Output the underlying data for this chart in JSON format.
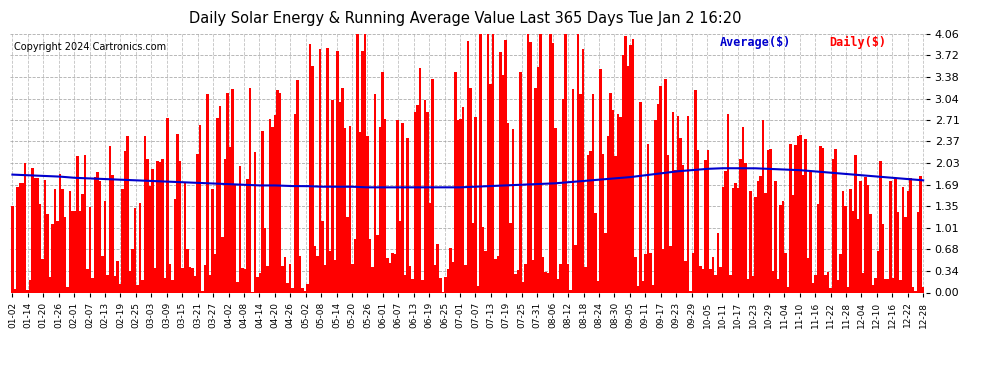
{
  "title": "Daily Solar Energy & Running Average Value Last 365 Days Tue Jan 2 16:20",
  "copyright": "Copyright 2024 Cartronics.com",
  "legend_avg": "Average($)",
  "legend_daily": "Daily($)",
  "ylim": [
    0.0,
    4.06
  ],
  "yticks": [
    0.0,
    0.34,
    0.68,
    1.01,
    1.35,
    1.69,
    2.03,
    2.37,
    2.71,
    3.04,
    3.38,
    3.72,
    4.06
  ],
  "bar_color": "#ff0000",
  "avg_line_color": "#0000cd",
  "bg_color": "#ffffff",
  "grid_color": "#999999",
  "title_color": "#000000",
  "copyright_color": "#000000",
  "x_labels": [
    "01-02",
    "01-14",
    "01-20",
    "01-26",
    "02-01",
    "02-07",
    "02-13",
    "02-19",
    "02-25",
    "03-03",
    "03-09",
    "03-15",
    "03-21",
    "03-27",
    "04-02",
    "04-08",
    "04-14",
    "04-20",
    "04-26",
    "05-02",
    "05-08",
    "05-14",
    "05-20",
    "05-26",
    "06-01",
    "06-07",
    "06-13",
    "06-19",
    "06-25",
    "07-01",
    "07-07",
    "07-13",
    "07-19",
    "07-25",
    "07-31",
    "08-06",
    "08-12",
    "08-18",
    "08-24",
    "08-30",
    "09-05",
    "09-11",
    "09-17",
    "09-23",
    "09-29",
    "10-05",
    "10-11",
    "10-17",
    "10-23",
    "10-29",
    "11-04",
    "11-10",
    "11-16",
    "11-22",
    "11-28",
    "12-04",
    "12-10",
    "12-16",
    "12-22",
    "12-28"
  ],
  "avg_line_points": [
    1.85,
    1.84,
    1.83,
    1.82,
    1.8,
    1.79,
    1.78,
    1.77,
    1.76,
    1.75,
    1.74,
    1.73,
    1.72,
    1.71,
    1.7,
    1.69,
    1.68,
    1.68,
    1.67,
    1.67,
    1.66,
    1.66,
    1.66,
    1.65,
    1.65,
    1.65,
    1.65,
    1.65,
    1.65,
    1.65,
    1.66,
    1.67,
    1.68,
    1.69,
    1.7,
    1.71,
    1.73,
    1.75,
    1.77,
    1.79,
    1.81,
    1.84,
    1.87,
    1.9,
    1.92,
    1.94,
    1.95,
    1.95,
    1.95,
    1.94,
    1.93,
    1.92,
    1.9,
    1.88,
    1.86,
    1.84,
    1.82,
    1.8,
    1.78,
    1.76
  ],
  "seed": 12345
}
